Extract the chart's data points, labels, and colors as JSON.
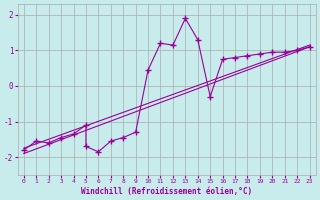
{
  "xlabel": "Windchill (Refroidissement éolien,°C)",
  "bg_color": "#c8ecec",
  "line_color": "#990099",
  "grid_color": "#aaaaaa",
  "xlim": [
    -0.5,
    23.5
  ],
  "ylim": [
    -2.5,
    2.3
  ],
  "xticks": [
    0,
    1,
    2,
    3,
    4,
    5,
    6,
    7,
    8,
    9,
    10,
    11,
    12,
    13,
    14,
    15,
    16,
    17,
    18,
    19,
    20,
    21,
    22,
    23
  ],
  "yticks": [
    -2,
    -1,
    0,
    1,
    2
  ],
  "scatter_x": [
    0,
    1,
    2,
    3,
    4,
    5,
    5,
    6,
    7,
    8,
    9,
    10,
    11,
    12,
    13,
    14,
    15,
    16,
    17,
    18,
    19,
    20,
    21,
    22,
    23
  ],
  "scatter_y": [
    -1.8,
    -1.55,
    -1.6,
    -1.45,
    -1.35,
    -1.1,
    -1.7,
    -1.85,
    -1.55,
    -1.45,
    -1.3,
    0.45,
    1.2,
    1.15,
    1.9,
    1.3,
    -0.3,
    0.75,
    0.8,
    0.85,
    0.9,
    0.95,
    0.95,
    1.0,
    1.1
  ],
  "line1_x": [
    0,
    23
  ],
  "line1_y": [
    -1.9,
    1.1
  ],
  "line2_x": [
    0,
    23
  ],
  "line2_y": [
    -1.75,
    1.15
  ]
}
